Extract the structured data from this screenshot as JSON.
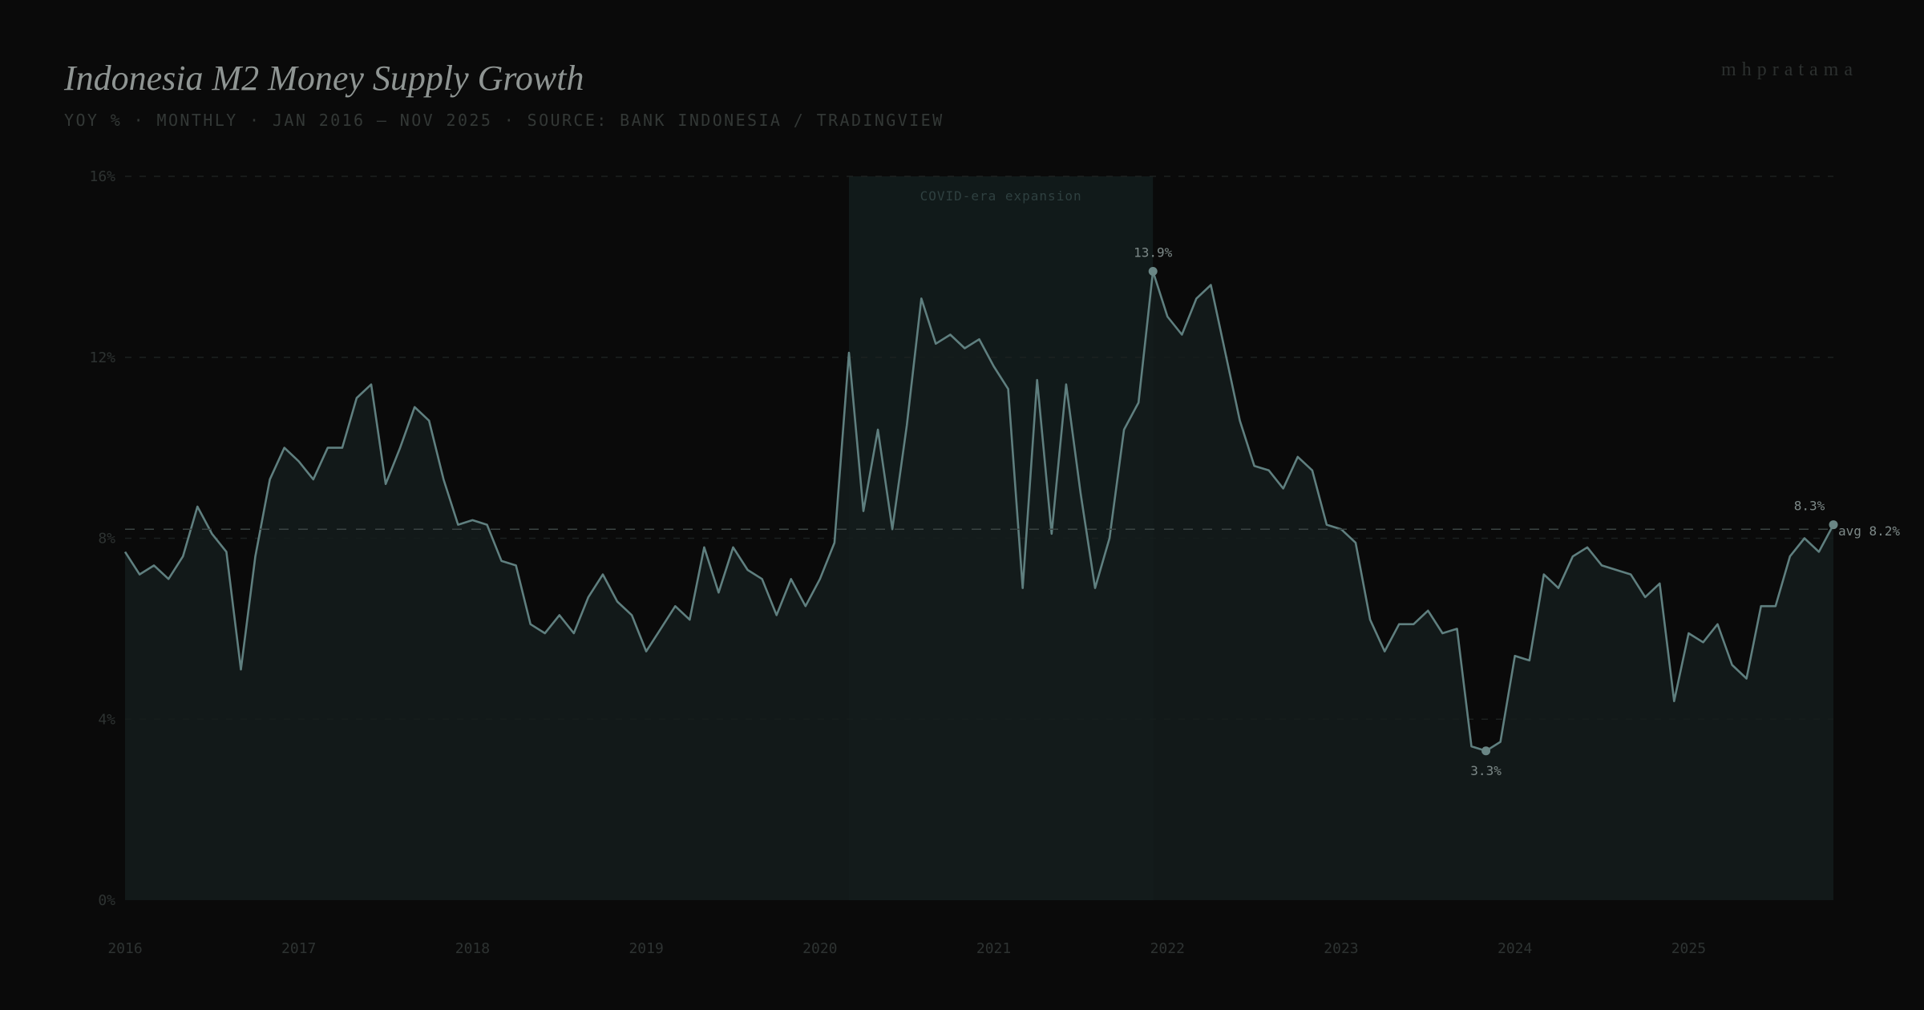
{
  "header": {
    "title": "Indonesia M2 Money Supply Growth",
    "subtitle": "YOY % · MONTHLY · JAN 2016 – NOV 2025 · SOURCE: BANK INDONESIA / TRADINGVIEW",
    "brand": "mhpratama"
  },
  "chart_data": {
    "type": "area",
    "title": "Indonesia M2 Money Supply Growth",
    "start": "2016-01",
    "end": "2025-11",
    "frequency": "monthly",
    "ylim": [
      0,
      16
    ],
    "y_ticks": [
      "0%",
      "4%",
      "8%",
      "12%",
      "16%"
    ],
    "y_tick_values": [
      0,
      4,
      8,
      12,
      16
    ],
    "x_ticks": [
      "2016",
      "2017",
      "2018",
      "2019",
      "2020",
      "2021",
      "2022",
      "2023",
      "2024",
      "2025"
    ],
    "values": [
      7.7,
      7.2,
      7.4,
      7.1,
      7.6,
      8.7,
      8.1,
      7.7,
      5.1,
      7.6,
      9.3,
      10.0,
      9.7,
      9.3,
      10.0,
      10.0,
      11.1,
      11.4,
      9.2,
      10.0,
      10.9,
      10.6,
      9.3,
      8.3,
      8.4,
      8.3,
      7.5,
      7.4,
      6.1,
      5.9,
      6.3,
      5.9,
      6.7,
      7.2,
      6.6,
      6.3,
      5.5,
      6.0,
      6.5,
      6.2,
      7.8,
      6.8,
      7.8,
      7.3,
      7.1,
      6.3,
      7.1,
      6.5,
      7.1,
      7.9,
      12.1,
      8.6,
      10.4,
      8.2,
      10.5,
      13.3,
      12.3,
      12.5,
      12.2,
      12.4,
      11.8,
      11.3,
      6.9,
      11.5,
      8.1,
      11.4,
      9.0,
      6.9,
      8.0,
      10.4,
      11.0,
      13.9,
      12.9,
      12.5,
      13.3,
      13.6,
      12.1,
      10.6,
      9.6,
      9.5,
      9.1,
      9.8,
      9.5,
      8.3,
      8.2,
      7.9,
      6.2,
      5.5,
      6.1,
      6.1,
      6.4,
      5.9,
      6.0,
      3.4,
      3.3,
      3.5,
      5.4,
      5.3,
      7.2,
      6.9,
      7.6,
      7.8,
      7.4,
      7.3,
      7.2,
      6.7,
      7.0,
      4.4,
      5.9,
      5.7,
      6.1,
      5.2,
      4.9,
      6.5,
      6.5,
      7.6,
      8.0,
      7.7,
      8.3
    ],
    "average": 8.2,
    "average_label": "avg 8.2%",
    "highlight_band": {
      "label": "COVID-era expansion",
      "from": "2020-03",
      "to": "2021-12"
    },
    "annotations": [
      {
        "date": "2021-12",
        "value": 13.9,
        "label": "13.9%",
        "position": "above"
      },
      {
        "date": "2023-11",
        "value": 3.3,
        "label": "3.3%",
        "position": "below"
      },
      {
        "date": "2025-11",
        "value": 8.3,
        "label": "8.3%",
        "position": "above"
      }
    ],
    "grid": true,
    "colors": {
      "background": "#0a0a0a",
      "line": "#5f7f7f",
      "fill": "#141c1c",
      "band": "#111a1a"
    }
  }
}
